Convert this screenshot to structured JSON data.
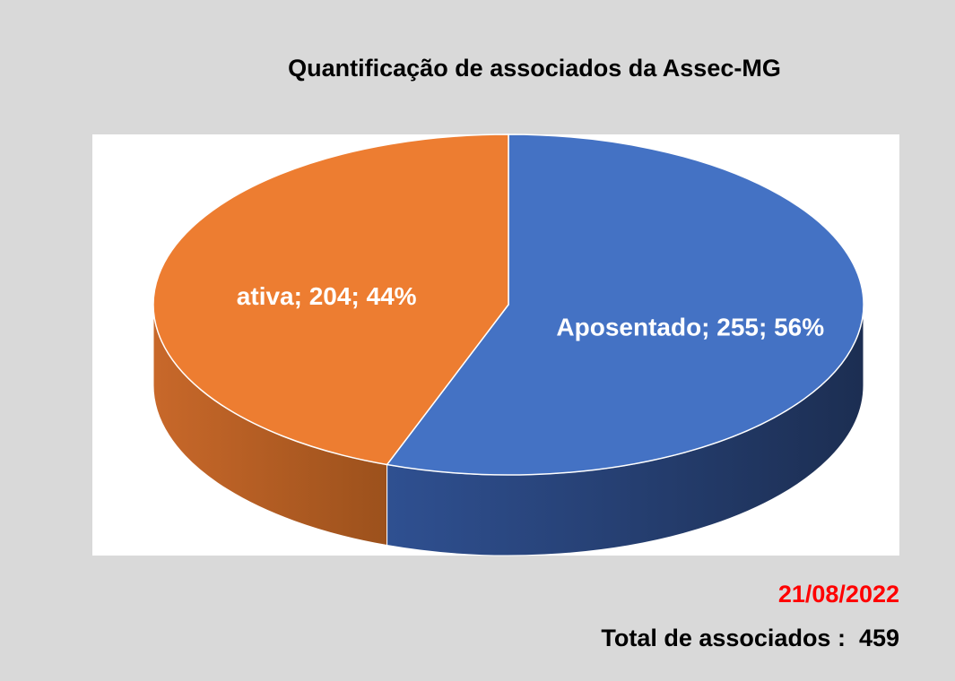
{
  "chart_data": {
    "type": "pie3d",
    "title": "Quantificação de associados da Assec-MG",
    "categories": [
      "Aposentado",
      "ativa"
    ],
    "values": [
      255,
      204
    ],
    "value_labels": [
      "Aposentado; 255; 56%",
      "ativa; 204; 44%"
    ],
    "colors": [
      "#4472c4",
      "#ed7d31"
    ]
  },
  "footer": {
    "date": "21/08/2022",
    "total": "Total de associados :  459"
  }
}
